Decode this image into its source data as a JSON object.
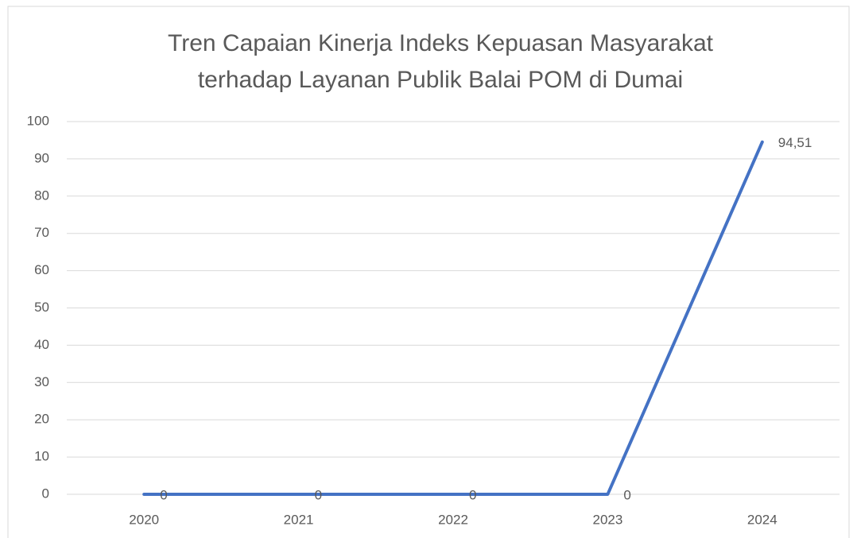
{
  "chart_data": {
    "type": "line",
    "title": [
      "Tren Capaian Kinerja Indeks Kepuasan Masyarakat",
      "terhadap Layanan Publik Balai POM di Dumai"
    ],
    "categories": [
      "2020",
      "2021",
      "2022",
      "2023",
      "2024"
    ],
    "series": [
      {
        "color": "#4472c4",
        "values": [
          0,
          0,
          0,
          0,
          94.51
        ],
        "value_labels": [
          "0",
          "0",
          "0",
          "0",
          "94,51"
        ]
      }
    ],
    "ylim": [
      0,
      100
    ],
    "yticks": [
      0,
      10,
      20,
      30,
      40,
      50,
      60,
      70,
      80,
      90,
      100
    ],
    "grid": true
  }
}
